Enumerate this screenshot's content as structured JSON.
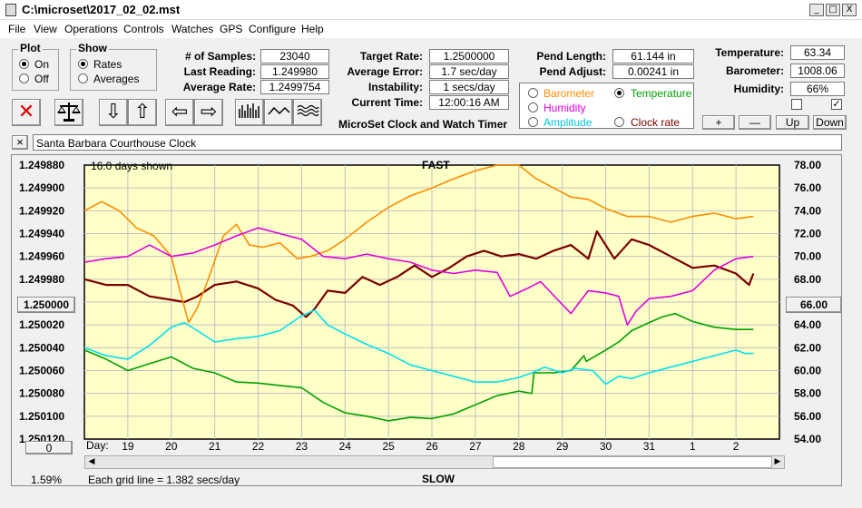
{
  "window": {
    "title": "C:\\microset\\2017_02_02.mst",
    "min": "_",
    "max": "□",
    "close": "X"
  },
  "menu": [
    "File",
    "View",
    "Operations",
    "Controls",
    "Watches",
    "GPS",
    "Configure",
    "Help"
  ],
  "plot_group": {
    "label": "Plot",
    "on": "On",
    "off": "Off",
    "selected": "On"
  },
  "show_group": {
    "label": "Show",
    "rates": "Rates",
    "averages": "Averages",
    "selected": "Rates"
  },
  "stats": {
    "samples_label": "# of Samples:",
    "samples": "23040",
    "last_reading_label": "Last Reading:",
    "last_reading": "1.249980",
    "average_rate_label": "Average Rate:",
    "average_rate": "1.2499754"
  },
  "rates": {
    "target_label": "Target Rate:",
    "target": "1.2500000",
    "avg_error_label": "Average Error:",
    "avg_error": "1.7 sec/day",
    "instability_label": "Instability:",
    "instability": "1 secs/day",
    "time_label": "Current Time:",
    "time": "12:00:16 AM",
    "app_name": "MicroSet Clock and Watch Timer"
  },
  "pendulum": {
    "length_label": "Pend Length:",
    "length": "61.144 in",
    "adjust_label": "Pend Adjust:",
    "adjust": "0.00241 in"
  },
  "environment": {
    "temp_label": "Temperature:",
    "temp": "63.34",
    "baro_label": "Barometer:",
    "baro": "1008.06",
    "humid_label": "Humidity:",
    "humid": "66%"
  },
  "aux_select": {
    "barometer": "Barometer",
    "temperature": "Temperature",
    "humidity": "Humidity",
    "amplitude": "Amplitude",
    "clock_rate": "Clock rate",
    "selected": "Temperature"
  },
  "adjust_buttons": {
    "plus": "+",
    "minus": "—",
    "up": "Up",
    "down": "Down"
  },
  "clock_name": "Santa Barbara Courthouse Clock",
  "close_x": "×",
  "chart_data": {
    "type": "line",
    "top_label": "FAST",
    "bottom_label": "SLOW",
    "days_shown": "16.0 days shown",
    "grid_note": "Each grid line = 1.382 secs/day",
    "left_axis_ticks": [
      "1.249880",
      "1.249900",
      "1.249920",
      "1.249940",
      "1.249960",
      "1.249980",
      "1.250000",
      "1.250020",
      "1.250040",
      "1.250060",
      "1.250080",
      "1.250100",
      "1.250120"
    ],
    "left_ylim": [
      1.24988,
      1.25012
    ],
    "right_axis_ticks": [
      "78.00",
      "76.00",
      "74.00",
      "72.00",
      "70.00",
      "68.00",
      "66.00",
      "64.00",
      "62.00",
      "60.00",
      "58.00",
      "56.00",
      "54.00"
    ],
    "right_ylim": [
      54,
      78
    ],
    "left_button": "1.250000",
    "right_button": "66.00",
    "x_prefix": "Day:",
    "x_ticks": [
      "19",
      "20",
      "21",
      "22",
      "23",
      "24",
      "25",
      "26",
      "27",
      "28",
      "29",
      "30",
      "31",
      "1",
      "2"
    ],
    "x_range": [
      18.0,
      34.0
    ],
    "x_tick_values": [
      19,
      20,
      21,
      22,
      23,
      24,
      25,
      26,
      27,
      28,
      29,
      30,
      31,
      32,
      33
    ],
    "bottom_left_value": "0",
    "percent": "1.59%",
    "grid": true,
    "series": [
      {
        "name": "Rate",
        "color": "#7a0000",
        "axis": "left",
        "x": [
          18.0,
          18.5,
          19.0,
          19.5,
          20.0,
          20.3,
          20.6,
          21.0,
          21.5,
          22.0,
          22.4,
          22.8,
          23.1,
          23.3,
          23.6,
          24.0,
          24.4,
          24.8,
          25.2,
          25.6,
          26.0,
          26.4,
          26.8,
          27.2,
          27.6,
          28.0,
          28.4,
          28.8,
          29.2,
          29.6,
          29.8,
          30.2,
          30.6,
          31.0,
          31.5,
          32.0,
          32.5,
          33.0,
          33.3,
          33.4
        ],
        "y": [
          1.24998,
          1.249985,
          1.249985,
          1.249995,
          1.249998,
          1.25,
          1.249995,
          1.249985,
          1.249982,
          1.249988,
          1.249998,
          1.250003,
          1.250013,
          1.250006,
          1.24999,
          1.249992,
          1.249978,
          1.249985,
          1.249978,
          1.249968,
          1.249978,
          1.24997,
          1.24996,
          1.249955,
          1.24996,
          1.249958,
          1.249962,
          1.249955,
          1.24995,
          1.249962,
          1.249938,
          1.249962,
          1.249945,
          1.24995,
          1.24996,
          1.24997,
          1.249968,
          1.249975,
          1.249985,
          1.249975
        ]
      },
      {
        "name": "Barometer",
        "color": "#ff8c00",
        "axis": "right",
        "x": [
          18.0,
          18.4,
          18.8,
          19.2,
          19.6,
          20.0,
          20.2,
          20.4,
          20.6,
          20.9,
          21.2,
          21.5,
          21.8,
          22.1,
          22.5,
          22.9,
          23.2,
          23.6,
          24.0,
          24.5,
          25.0,
          25.5,
          26.0,
          26.5,
          27.0,
          27.5,
          28.0,
          28.4,
          28.8,
          29.2,
          29.6,
          30.0,
          30.5,
          31.0,
          31.5,
          32.0,
          32.5,
          33.0,
          33.4
        ],
        "y": [
          74.0,
          74.8,
          74.0,
          72.5,
          71.8,
          70.0,
          67.0,
          64.2,
          65.5,
          68.5,
          71.8,
          72.8,
          71.0,
          70.8,
          71.2,
          69.8,
          70.0,
          70.5,
          71.5,
          73.0,
          74.3,
          75.3,
          76.0,
          76.8,
          77.5,
          78.0,
          78.0,
          76.8,
          76.0,
          75.2,
          75.0,
          74.2,
          73.5,
          73.5,
          73.0,
          73.5,
          73.8,
          73.3,
          73.5
        ]
      },
      {
        "name": "Humidity",
        "color": "#e000e0",
        "axis": "right",
        "x": [
          18.0,
          18.5,
          19.0,
          19.5,
          20.0,
          20.5,
          21.0,
          21.5,
          22.0,
          22.5,
          23.0,
          23.5,
          24.0,
          24.5,
          25.0,
          25.5,
          26.0,
          26.5,
          27.0,
          27.5,
          27.8,
          28.2,
          28.5,
          28.9,
          29.2,
          29.6,
          30.0,
          30.3,
          30.5,
          30.7,
          31.0,
          31.5,
          32.0,
          32.5,
          33.0,
          33.4
        ],
        "y": [
          69.5,
          69.8,
          70.0,
          71.0,
          70.0,
          70.3,
          71.0,
          71.8,
          72.5,
          72.0,
          71.5,
          70.0,
          69.8,
          70.2,
          69.8,
          69.5,
          68.8,
          68.5,
          68.8,
          68.6,
          66.5,
          67.2,
          67.8,
          66.2,
          65.0,
          67.0,
          66.8,
          66.5,
          64.0,
          65.2,
          66.3,
          66.5,
          67.0,
          68.8,
          69.8,
          70.0
        ]
      },
      {
        "name": "Temperature",
        "color": "#00a000",
        "axis": "right",
        "x": [
          18.0,
          18.5,
          19.0,
          19.5,
          20.0,
          20.5,
          21.0,
          21.5,
          22.0,
          22.5,
          23.0,
          23.5,
          24.0,
          24.5,
          25.0,
          25.5,
          26.0,
          26.5,
          27.0,
          27.5,
          28.0,
          28.3,
          28.35,
          28.8,
          29.2,
          29.5,
          29.55,
          30.0,
          30.3,
          30.6,
          31.0,
          31.3,
          31.6,
          32.0,
          32.5,
          33.0,
          33.4
        ],
        "y": [
          61.8,
          61.0,
          60.0,
          60.6,
          61.2,
          60.2,
          59.8,
          59.0,
          58.9,
          58.7,
          58.5,
          57.2,
          56.3,
          56.0,
          55.6,
          55.9,
          55.8,
          56.2,
          57.0,
          57.8,
          58.2,
          58.0,
          59.8,
          59.8,
          60.0,
          61.3,
          60.8,
          61.8,
          62.5,
          63.5,
          64.2,
          64.7,
          65.0,
          64.3,
          63.8,
          63.6,
          63.6
        ]
      },
      {
        "name": "Amplitude",
        "color": "#00e0f0",
        "axis": "right",
        "x": [
          18.0,
          18.5,
          19.0,
          19.5,
          20.0,
          20.3,
          20.6,
          21.0,
          21.5,
          22.0,
          22.5,
          23.0,
          23.3,
          23.6,
          24.0,
          24.5,
          25.0,
          25.5,
          26.0,
          26.5,
          27.0,
          27.5,
          28.0,
          28.3,
          28.6,
          29.0,
          29.3,
          29.7,
          30.0,
          30.3,
          30.6,
          31.0,
          31.5,
          32.0,
          32.5,
          33.0,
          33.2,
          33.4
        ],
        "y": [
          62.0,
          61.3,
          61.0,
          62.2,
          63.8,
          64.2,
          63.5,
          62.5,
          62.8,
          63.0,
          63.5,
          64.8,
          65.3,
          64.0,
          63.2,
          62.3,
          61.5,
          60.5,
          60.0,
          59.5,
          59.0,
          59.0,
          59.4,
          59.8,
          60.3,
          59.8,
          60.2,
          60.0,
          58.8,
          59.5,
          59.3,
          59.8,
          60.3,
          60.8,
          61.3,
          61.8,
          61.5,
          61.5
        ]
      }
    ]
  }
}
